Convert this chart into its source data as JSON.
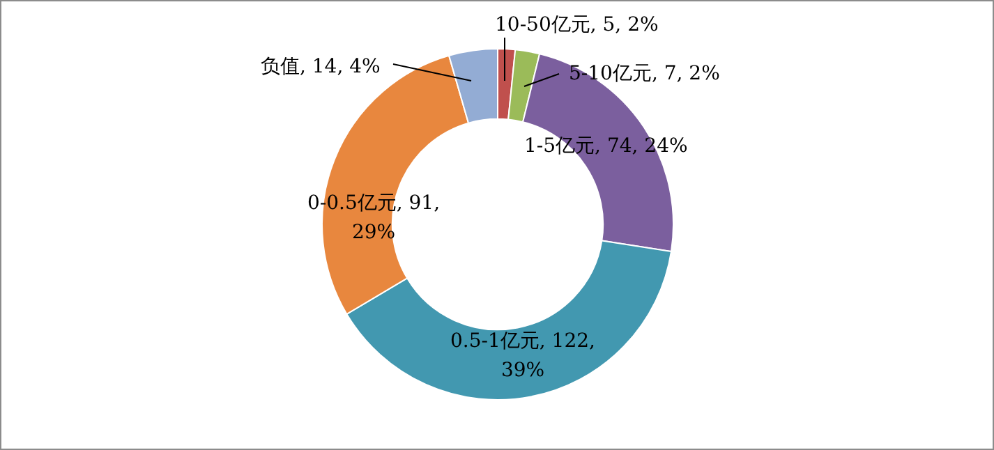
{
  "chart_data": {
    "type": "donut",
    "categories": [
      "10-50亿元",
      "5-10亿元",
      "1-5亿元",
      "0.5-1亿元",
      "0-0.5亿元",
      "负值"
    ],
    "values": [
      5,
      7,
      74,
      122,
      91,
      14
    ],
    "colors": [
      "#c0504d",
      "#9bbb59",
      "#7b5f9e",
      "#4298b0",
      "#e8873e",
      "#93acd4"
    ],
    "value_labels": [
      "5, 2%",
      "7, 2%",
      "74, 24%",
      "122, 39%",
      "91, 29%",
      "14, 4%"
    ]
  }
}
